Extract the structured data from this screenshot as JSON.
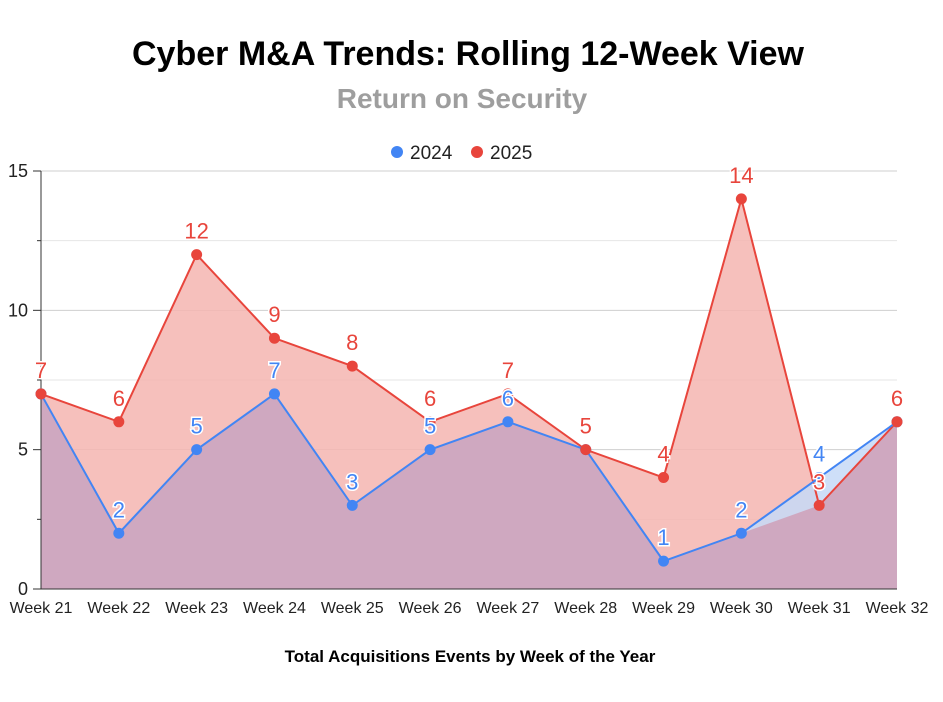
{
  "chart_data": {
    "type": "area",
    "title": "Cyber M&A Trends: Rolling 12-Week View",
    "subtitle": "Return on Security",
    "xlabel": "Total Acquisitions Events by Week of the Year",
    "ylabel": "",
    "ylim": [
      0,
      15
    ],
    "yticks": [
      "0",
      "5",
      "10",
      "15"
    ],
    "categories": [
      "Week 21",
      "Week 22",
      "Week 23",
      "Week 24",
      "Week 25",
      "Week 26",
      "Week 27",
      "Week 28",
      "Week 29",
      "Week 30",
      "Week 31",
      "Week 32"
    ],
    "legend_position": "top",
    "grid": true,
    "series": [
      {
        "name": "2024",
        "color": "#4285f4",
        "fill": "#c6d9f7",
        "values": [
          7,
          2,
          5,
          7,
          3,
          5,
          6,
          5,
          1,
          2,
          4,
          6
        ]
      },
      {
        "name": "2025",
        "color": "#e8453c",
        "fill": "#f5b5b0",
        "values": [
          7,
          6,
          12,
          9,
          8,
          6,
          7,
          5,
          4,
          14,
          3,
          6
        ]
      }
    ],
    "overlap_fill": "#cfa8c0"
  }
}
